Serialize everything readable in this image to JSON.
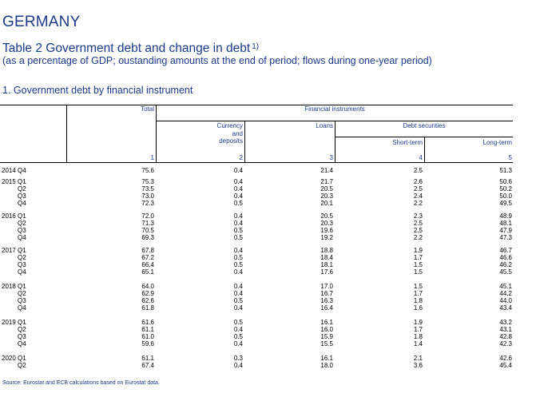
{
  "header": {
    "country": "GERMANY",
    "table_title": "Table 2 Government debt and change in debt",
    "footnote_ref": "1)",
    "subtitle": "(as a percentage of GDP; oustanding amounts at the end of period; flows during one-year period)",
    "section_title": "1. Government debt by financial instrument"
  },
  "columns": {
    "total": "Total",
    "financial_instruments": "Financial instruments",
    "currency_line1": "Currency",
    "currency_line2": "and",
    "currency_line3": "deposits",
    "loans": "Loans",
    "debt_securities": "Debt securities",
    "short_term": "Short-term",
    "long_term": "Long-term",
    "num1": "1",
    "num2": "2",
    "num3": "3",
    "num4": "4",
    "num5": "5"
  },
  "rows": [
    {
      "label": "2014 Q4",
      "total": "75.6",
      "currency": "0.4",
      "loans": "21.4",
      "short": "2.5",
      "long": "51.3"
    },
    {
      "label": "2015 Q1",
      "total": "75.3",
      "currency": "0.4",
      "loans": "21.7",
      "short": "2.6",
      "long": "50.6"
    },
    {
      "label": "Q2",
      "total": "73.5",
      "currency": "0.4",
      "loans": "20.5",
      "short": "2.5",
      "long": "50.2"
    },
    {
      "label": "Q3",
      "total": "73.0",
      "currency": "0.4",
      "loans": "20.3",
      "short": "2.4",
      "long": "50.0"
    },
    {
      "label": "Q4",
      "total": "72.3",
      "currency": "0.5",
      "loans": "20.1",
      "short": "2.2",
      "long": "49.5"
    },
    {
      "label": "2016 Q1",
      "total": "72.0",
      "currency": "0.4",
      "loans": "20.5",
      "short": "2.3",
      "long": "48.9"
    },
    {
      "label": "Q2",
      "total": "71.3",
      "currency": "0.4",
      "loans": "20.3",
      "short": "2.5",
      "long": "48.1"
    },
    {
      "label": "Q3",
      "total": "70.5",
      "currency": "0.5",
      "loans": "19.6",
      "short": "2.5",
      "long": "47.9"
    },
    {
      "label": "Q4",
      "total": "69.3",
      "currency": "0.5",
      "loans": "19.2",
      "short": "2.2",
      "long": "47.3"
    },
    {
      "label": "2017 Q1",
      "total": "67.8",
      "currency": "0.4",
      "loans": "18.8",
      "short": "1.9",
      "long": "46.7"
    },
    {
      "label": "Q2",
      "total": "67.2",
      "currency": "0.5",
      "loans": "18.4",
      "short": "1.7",
      "long": "46.6"
    },
    {
      "label": "Q3",
      "total": "66.4",
      "currency": "0.5",
      "loans": "18.1",
      "short": "1.5",
      "long": "46.2"
    },
    {
      "label": "Q4",
      "total": "65.1",
      "currency": "0.4",
      "loans": "17.6",
      "short": "1.5",
      "long": "45.5"
    },
    {
      "label": "2018 Q1",
      "total": "64.0",
      "currency": "0.4",
      "loans": "17.0",
      "short": "1.5",
      "long": "45.1"
    },
    {
      "label": "Q2",
      "total": "62.9",
      "currency": "0.4",
      "loans": "16.7",
      "short": "1.7",
      "long": "44.2"
    },
    {
      "label": "Q3",
      "total": "62.6",
      "currency": "0.5",
      "loans": "16.3",
      "short": "1.8",
      "long": "44.0"
    },
    {
      "label": "Q4",
      "total": "61.8",
      "currency": "0.4",
      "loans": "16.4",
      "short": "1.6",
      "long": "43.4"
    },
    {
      "label": "2019 Q1",
      "total": "61.6",
      "currency": "0.5",
      "loans": "16.1",
      "short": "1.9",
      "long": "43.2"
    },
    {
      "label": "Q2",
      "total": "61.1",
      "currency": "0.4",
      "loans": "16.0",
      "short": "1.7",
      "long": "43.1"
    },
    {
      "label": "Q3",
      "total": "61.0",
      "currency": "0.5",
      "loans": "15.9",
      "short": "1.8",
      "long": "42.8"
    },
    {
      "label": "Q4",
      "total": "59.6",
      "currency": "0.4",
      "loans": "15.5",
      "short": "1.4",
      "long": "42.3"
    },
    {
      "label": "2020 Q1",
      "total": "61.1",
      "currency": "0.3",
      "loans": "16.1",
      "short": "2.1",
      "long": "42.6"
    },
    {
      "label": "Q2",
      "total": "67.4",
      "currency": "0.4",
      "loans": "18.0",
      "short": "3.6",
      "long": "45.4"
    }
  ],
  "source": "Source: Eurostat and ECB calculations based on Eurostat data."
}
